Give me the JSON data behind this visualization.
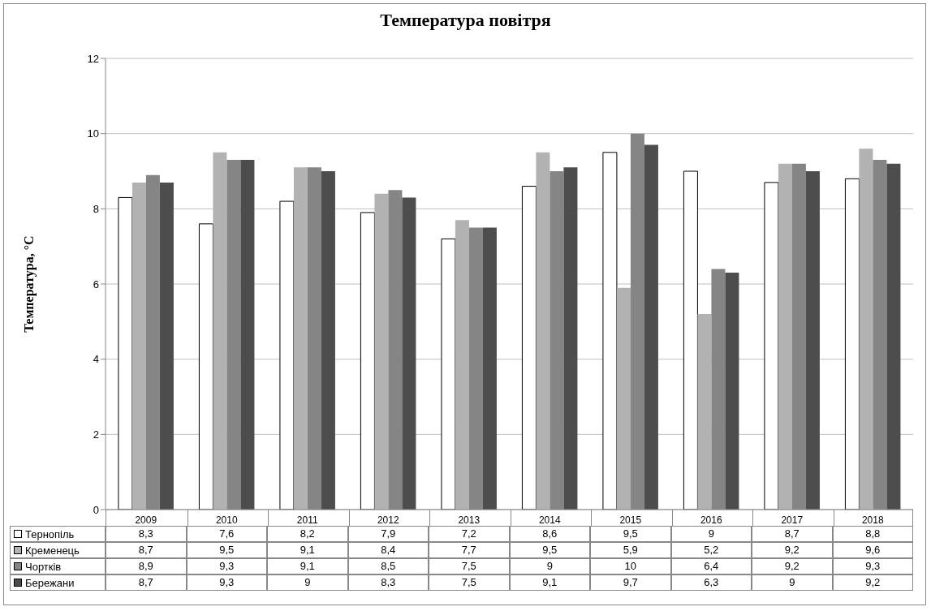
{
  "chart_data": {
    "type": "bar",
    "title": "Температура повітря",
    "ylabel": "Температура, °C",
    "categories": [
      "2009",
      "2010",
      "2011",
      "2012",
      "2013",
      "2014",
      "2015",
      "2016",
      "2017",
      "2018"
    ],
    "series": [
      {
        "name": "Тернопіль",
        "color": "#ffffff",
        "values": [
          8.3,
          7.6,
          8.2,
          7.9,
          7.2,
          8.6,
          9.5,
          9,
          8.7,
          8.8
        ],
        "value_labels": [
          "8,3",
          "7,6",
          "8,2",
          "7,9",
          "7,2",
          "8,6",
          "9,5",
          "9",
          "8,7",
          "8,8"
        ]
      },
      {
        "name": "Кременець",
        "color": "#b2b2b2",
        "values": [
          8.7,
          9.5,
          9.1,
          8.4,
          7.7,
          9.5,
          5.9,
          5.2,
          9.2,
          9.6
        ],
        "value_labels": [
          "8,7",
          "9,5",
          "9,1",
          "8,4",
          "7,7",
          "9,5",
          "5,9",
          "5,2",
          "9,2",
          "9,6"
        ]
      },
      {
        "name": "Чортків",
        "color": "#858585",
        "values": [
          8.9,
          9.3,
          9.1,
          8.5,
          7.5,
          9,
          10,
          6.4,
          9.2,
          9.3
        ],
        "value_labels": [
          "8,9",
          "9,3",
          "9,1",
          "8,5",
          "7,5",
          "9",
          "10",
          "6,4",
          "9,2",
          "9,3"
        ]
      },
      {
        "name": "Бережани",
        "color": "#4d4d4d",
        "values": [
          8.7,
          9.3,
          9,
          8.3,
          7.5,
          9.1,
          9.7,
          6.3,
          9,
          9.2
        ],
        "value_labels": [
          "8,7",
          "9,3",
          "9",
          "8,3",
          "7,5",
          "9,1",
          "9,7",
          "6,3",
          "9",
          "9,2"
        ]
      }
    ],
    "ylim": [
      0,
      12
    ],
    "yticks": [
      0,
      2,
      4,
      6,
      8,
      10,
      12
    ],
    "grid": "y",
    "legend": "bottom"
  }
}
